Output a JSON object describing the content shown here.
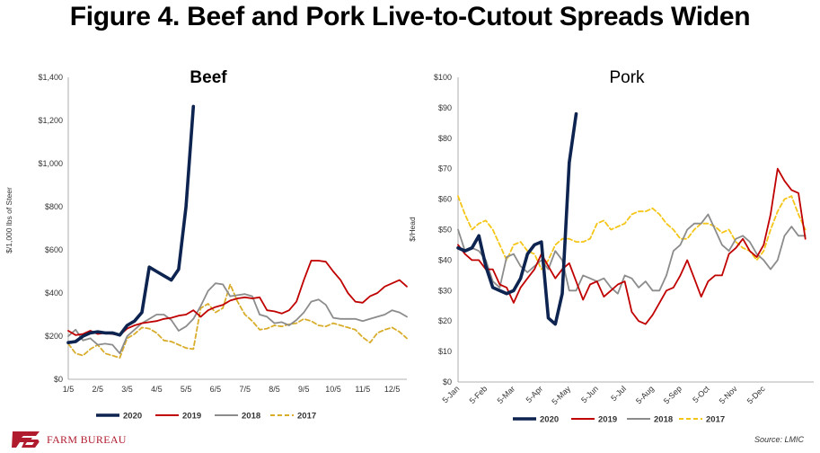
{
  "title": "Figure 4. Beef and Pork Live-to-Cutout Spreads Widen",
  "source": "Source: LMIC",
  "logo_text": "FARM BUREAU",
  "colors": {
    "s2020": "#0d2350",
    "s2019": "#c00000",
    "s2018": "#8c8c8c",
    "s2017": "#d9ad2c",
    "s2017_pork": "#f5c518"
  },
  "chart_data": [
    {
      "type": "line",
      "title": "Beef",
      "ylabel": "$/1,000 lbs of Steer",
      "xlabel": "",
      "ylim": [
        0,
        1400
      ],
      "yticks": [
        0,
        200,
        400,
        600,
        800,
        1000,
        1200,
        1400
      ],
      "ytick_labels": [
        "$0",
        "$200",
        "$400",
        "$600",
        "$800",
        "$1,000",
        "$1,200",
        "$1,400"
      ],
      "xlim": [
        0,
        11.5
      ],
      "xticks": [
        0,
        1,
        2,
        3,
        4,
        5,
        6,
        7,
        8,
        9,
        10,
        11
      ],
      "xtick_labels": [
        "1/5",
        "2/5",
        "3/5",
        "4/5",
        "5/5",
        "6/5",
        "7/5",
        "8/5",
        "9/5",
        "10/5",
        "11/5",
        "12/5"
      ],
      "series": [
        {
          "name": "2020",
          "x": [
            0,
            0.25,
            0.5,
            0.75,
            1,
            1.25,
            1.5,
            1.75,
            2,
            2.25,
            2.5,
            2.75,
            3,
            3.25,
            3.5,
            3.75,
            4,
            4.25,
            4.5,
            4.75,
            5
          ],
          "values": [
            170,
            175,
            200,
            215,
            220,
            215,
            215,
            205,
            250,
            270,
            310,
            520,
            500,
            480,
            460,
            510,
            800,
            1265,
            null,
            null,
            null
          ]
        },
        {
          "name": "2019",
          "x": [
            0,
            0.25,
            0.5,
            0.75,
            1,
            1.25,
            1.5,
            1.75,
            2,
            2.25,
            2.5,
            2.75,
            3,
            3.25,
            3.5,
            3.75,
            4,
            4.25,
            4.5,
            4.75,
            5,
            5.25,
            5.5,
            5.75,
            6,
            6.25,
            6.5,
            6.75,
            7,
            7.25,
            7.5,
            7.75,
            8,
            8.25,
            8.5,
            8.75,
            9,
            9.25,
            9.5,
            9.75,
            10,
            10.25,
            10.5,
            10.75,
            11,
            11.25,
            11.5
          ],
          "values": [
            225,
            205,
            210,
            225,
            210,
            215,
            210,
            205,
            235,
            250,
            260,
            265,
            270,
            280,
            285,
            295,
            300,
            320,
            290,
            320,
            335,
            345,
            365,
            375,
            380,
            375,
            380,
            320,
            315,
            305,
            320,
            360,
            460,
            550,
            550,
            545,
            500,
            460,
            400,
            360,
            355,
            385,
            400,
            430,
            445,
            460,
            430
          ]
        },
        {
          "name": "2018",
          "x": [
            0,
            0.25,
            0.5,
            0.75,
            1,
            1.25,
            1.5,
            1.75,
            2,
            2.25,
            2.5,
            2.75,
            3,
            3.25,
            3.5,
            3.75,
            4,
            4.25,
            4.5,
            4.75,
            5,
            5.25,
            5.5,
            5.75,
            6,
            6.25,
            6.5,
            6.75,
            7,
            7.25,
            7.5,
            7.75,
            8,
            8.25,
            8.5,
            8.75,
            9,
            9.25,
            9.5,
            9.75,
            10,
            10.25,
            10.5,
            10.75,
            11,
            11.25,
            11.5
          ],
          "values": [
            200,
            230,
            180,
            190,
            160,
            165,
            160,
            120,
            200,
            230,
            260,
            280,
            300,
            300,
            275,
            225,
            245,
            280,
            340,
            410,
            445,
            440,
            385,
            390,
            395,
            385,
            300,
            290,
            260,
            265,
            250,
            275,
            310,
            360,
            370,
            345,
            285,
            280,
            280,
            280,
            270,
            280,
            290,
            300,
            320,
            310,
            290
          ]
        },
        {
          "name": "2017",
          "x": [
            0,
            0.25,
            0.5,
            0.75,
            1,
            1.25,
            1.5,
            1.75,
            2,
            2.25,
            2.5,
            2.75,
            3,
            3.25,
            3.5,
            3.75,
            4,
            4.25,
            4.5,
            4.75,
            5,
            5.25,
            5.5,
            5.75,
            6,
            6.25,
            6.5,
            6.75,
            7,
            7.25,
            7.5,
            7.75,
            8,
            8.25,
            8.5,
            8.75,
            9,
            9.25,
            9.5,
            9.75,
            10,
            10.25,
            10.5,
            10.75,
            11,
            11.25,
            11.5
          ],
          "values": [
            165,
            120,
            110,
            140,
            160,
            120,
            110,
            100,
            190,
            210,
            240,
            235,
            215,
            180,
            175,
            160,
            145,
            140,
            330,
            350,
            310,
            330,
            440,
            360,
            300,
            270,
            230,
            235,
            250,
            245,
            255,
            260,
            280,
            270,
            250,
            245,
            260,
            250,
            240,
            230,
            195,
            170,
            215,
            230,
            240,
            220,
            190
          ]
        }
      ],
      "legend": [
        "2020",
        "2019",
        "2018",
        "2017"
      ]
    },
    {
      "type": "line",
      "title": "Pork",
      "ylabel": "$/Head",
      "xlabel": "",
      "ylim": [
        0,
        100
      ],
      "yticks": [
        0,
        10,
        20,
        30,
        40,
        50,
        60,
        70,
        80,
        90,
        100
      ],
      "ytick_labels": [
        "$0",
        "$10",
        "$20",
        "$30",
        "$40",
        "$50",
        "$60",
        "$70",
        "$80",
        "$90",
        "$100"
      ],
      "xlim": [
        0,
        12.8
      ],
      "xticks": [
        0,
        1,
        2,
        3,
        4,
        5,
        6,
        7,
        8,
        9,
        10,
        11,
        12
      ],
      "xtick_labels": [
        "5-Jan",
        "5-Feb",
        "5-Mar",
        "5-Apr",
        "5-May",
        "5-Jun",
        "5-Jul",
        "5-Aug",
        "5-Sep",
        "5-Oct",
        "5-Nov",
        "5-Dec",
        ""
      ],
      "series": [
        {
          "name": "2020",
          "x": [
            0,
            0.25,
            0.5,
            0.75,
            1,
            1.25,
            1.5,
            1.75,
            2,
            2.25,
            2.5,
            2.75,
            3,
            3.25,
            3.5,
            3.75,
            4,
            4.25
          ],
          "values": [
            44,
            43,
            44,
            48,
            38,
            31,
            30,
            29,
            30,
            34,
            42,
            45,
            46,
            21,
            19,
            29,
            72,
            88
          ]
        },
        {
          "name": "2019",
          "x": [
            0,
            0.25,
            0.5,
            0.75,
            1,
            1.25,
            1.5,
            1.75,
            2,
            2.25,
            2.5,
            2.75,
            3,
            3.25,
            3.5,
            3.75,
            4,
            4.25,
            4.5,
            4.75,
            5,
            5.25,
            5.5,
            5.75,
            6,
            6.25,
            6.5,
            6.75,
            7,
            7.25,
            7.5,
            7.75,
            8,
            8.25,
            8.5,
            8.75,
            9,
            9.25,
            9.5,
            9.75,
            10,
            10.25,
            10.5,
            10.75,
            11,
            11.25,
            11.5,
            11.75,
            12,
            12.25,
            12.5
          ],
          "values": [
            45,
            42,
            40,
            40,
            37,
            37,
            32,
            31,
            26,
            31,
            34,
            37,
            42,
            38,
            34,
            37,
            39,
            33,
            27,
            32,
            33,
            28,
            30,
            32,
            33,
            23,
            20,
            19,
            22,
            26,
            30,
            31,
            35,
            40,
            34,
            28,
            33,
            35,
            35,
            42,
            44,
            47,
            43,
            41,
            45,
            55,
            70,
            66,
            63,
            62,
            47
          ]
        },
        {
          "name": "2018",
          "x": [
            0,
            0.25,
            0.5,
            0.75,
            1,
            1.25,
            1.5,
            1.75,
            2,
            2.25,
            2.5,
            2.75,
            3,
            3.25,
            3.5,
            3.75,
            4,
            4.25,
            4.5,
            4.75,
            5,
            5.25,
            5.5,
            5.75,
            6,
            6.25,
            6.5,
            6.75,
            7,
            7.25,
            7.5,
            7.75,
            8,
            8.25,
            8.5,
            8.75,
            9,
            9.25,
            9.5,
            9.75,
            10,
            10.25,
            10.5,
            10.75,
            11,
            11.25,
            11.5,
            11.75,
            12,
            12.25,
            12.5
          ],
          "values": [
            50,
            43,
            44,
            43,
            40,
            33,
            31,
            41,
            42,
            38,
            36,
            38,
            40,
            37,
            43,
            40,
            30,
            30,
            35,
            34,
            33,
            34,
            31,
            29,
            35,
            34,
            31,
            33,
            30,
            30,
            35,
            43,
            45,
            50,
            52,
            52,
            55,
            50,
            45,
            43,
            47,
            48,
            46,
            42,
            40,
            37,
            40,
            48,
            51,
            48,
            48
          ]
        },
        {
          "name": "2017",
          "x": [
            0,
            0.25,
            0.5,
            0.75,
            1,
            1.25,
            1.5,
            1.75,
            2,
            2.25,
            2.5,
            2.75,
            3,
            3.25,
            3.5,
            3.75,
            4,
            4.25,
            4.5,
            4.75,
            5,
            5.25,
            5.5,
            5.75,
            6,
            6.25,
            6.5,
            6.75,
            7,
            7.25,
            7.5,
            7.75,
            8,
            8.25,
            8.5,
            8.75,
            9,
            9.25,
            9.5,
            9.75,
            10,
            10.25,
            10.5,
            10.75,
            11,
            11.25,
            11.5,
            11.75,
            12,
            12.25,
            12.5
          ],
          "values": [
            61,
            55,
            50,
            52,
            53,
            50,
            45,
            40,
            45,
            46,
            43,
            42,
            37,
            40,
            45,
            47,
            47,
            46,
            46,
            47,
            52,
            53,
            50,
            51,
            52,
            55,
            56,
            56,
            57,
            55,
            52,
            50,
            47,
            47,
            50,
            52,
            52,
            51,
            49,
            50,
            46,
            44,
            43,
            40,
            43,
            50,
            56,
            60,
            61,
            55,
            50
          ]
        }
      ],
      "legend": [
        "2020",
        "2019",
        "2018",
        "2017"
      ]
    }
  ]
}
